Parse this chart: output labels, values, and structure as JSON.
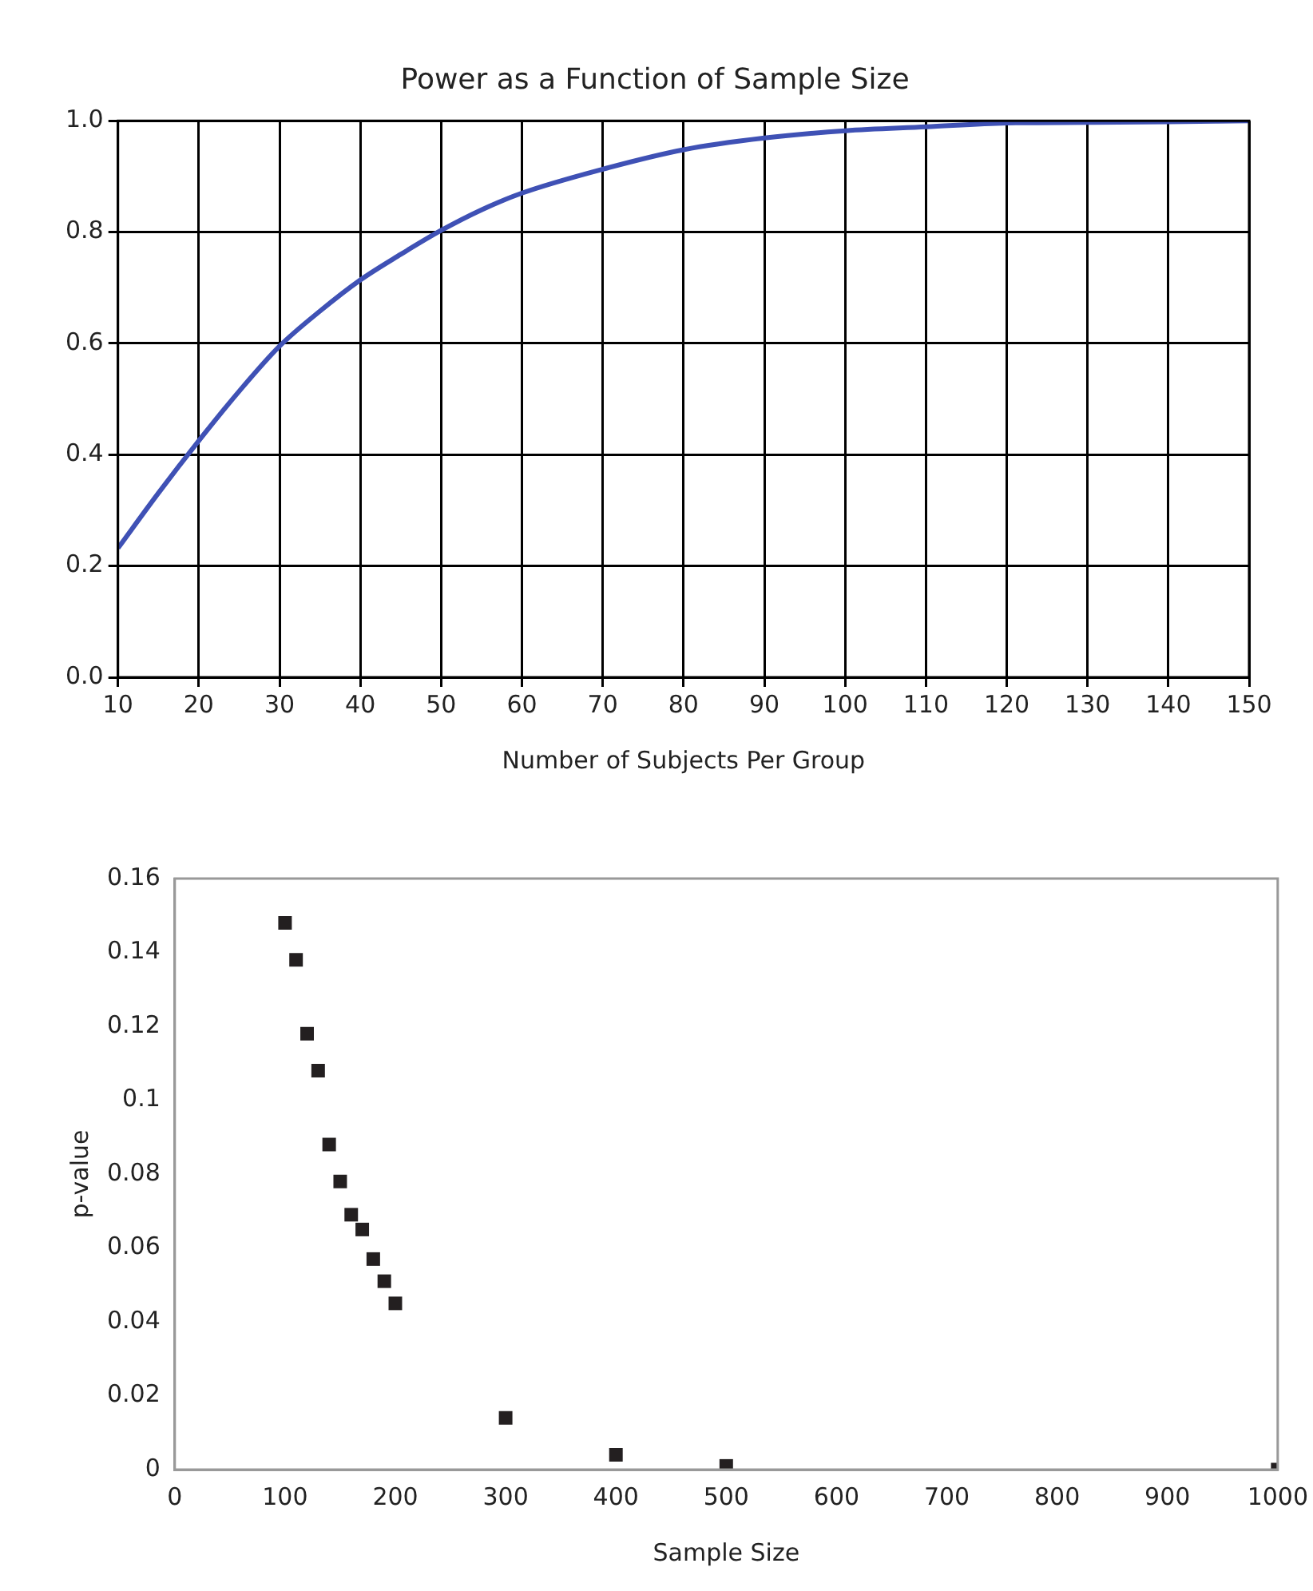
{
  "chart_data": [
    {
      "type": "line",
      "title": "Power as a Function of Sample Size",
      "xlabel": "Number of Subjects Per Group",
      "x": [
        10,
        15,
        20,
        25,
        30,
        35,
        40,
        45,
        50,
        55,
        60,
        70,
        80,
        90,
        100,
        110,
        120,
        130,
        140,
        150
      ],
      "series": [
        {
          "color": "#3f51b5",
          "values": [
            0.232,
            0.331,
            0.425,
            0.514,
            0.595,
            0.658,
            0.714,
            0.76,
            0.803,
            0.84,
            0.87,
            0.913,
            0.948,
            0.969,
            0.982,
            0.989,
            0.996,
            0.997,
            0.998,
            1.0
          ]
        }
      ],
      "xlim": [
        10,
        150
      ],
      "xticks": [
        10,
        20,
        30,
        40,
        50,
        60,
        70,
        80,
        90,
        100,
        110,
        120,
        130,
        140,
        150
      ],
      "ylim": [
        0,
        1
      ],
      "yticks": [
        {
          "value": 0,
          "label": "0.0"
        },
        {
          "value": 0.2,
          "label": "0.2"
        },
        {
          "value": 0.4,
          "label": "0.4"
        },
        {
          "value": 0.6,
          "label": "0.6"
        },
        {
          "value": 0.8,
          "label": "0.8"
        },
        {
          "value": 1,
          "label": "1.0"
        }
      ],
      "grid": true,
      "legend": false,
      "marker": "none",
      "line_style": "solid"
    },
    {
      "type": "scatter",
      "xlabel": "Sample Size",
      "ylabel": "p-value",
      "x": [
        100,
        110,
        120,
        130,
        140,
        150,
        160,
        170,
        180,
        190,
        200,
        300,
        400,
        500,
        1000
      ],
      "series": [
        {
          "color": "#231f20",
          "values": [
            0.148,
            0.138,
            0.118,
            0.108,
            0.088,
            0.078,
            0.069,
            0.065,
            0.057,
            0.051,
            0.045,
            0.014,
            0.004,
            0.001,
            0
          ]
        }
      ],
      "xlim": [
        0,
        1000
      ],
      "xticks": [
        0,
        100,
        200,
        300,
        400,
        500,
        600,
        700,
        800,
        900,
        1000
      ],
      "ylim": [
        0,
        0.16
      ],
      "yticks": [
        0,
        0.02,
        0.04,
        0.06,
        0.08,
        0.1,
        0.12,
        0.14,
        0.16
      ],
      "grid": false,
      "legend": false,
      "marker": "square"
    }
  ]
}
